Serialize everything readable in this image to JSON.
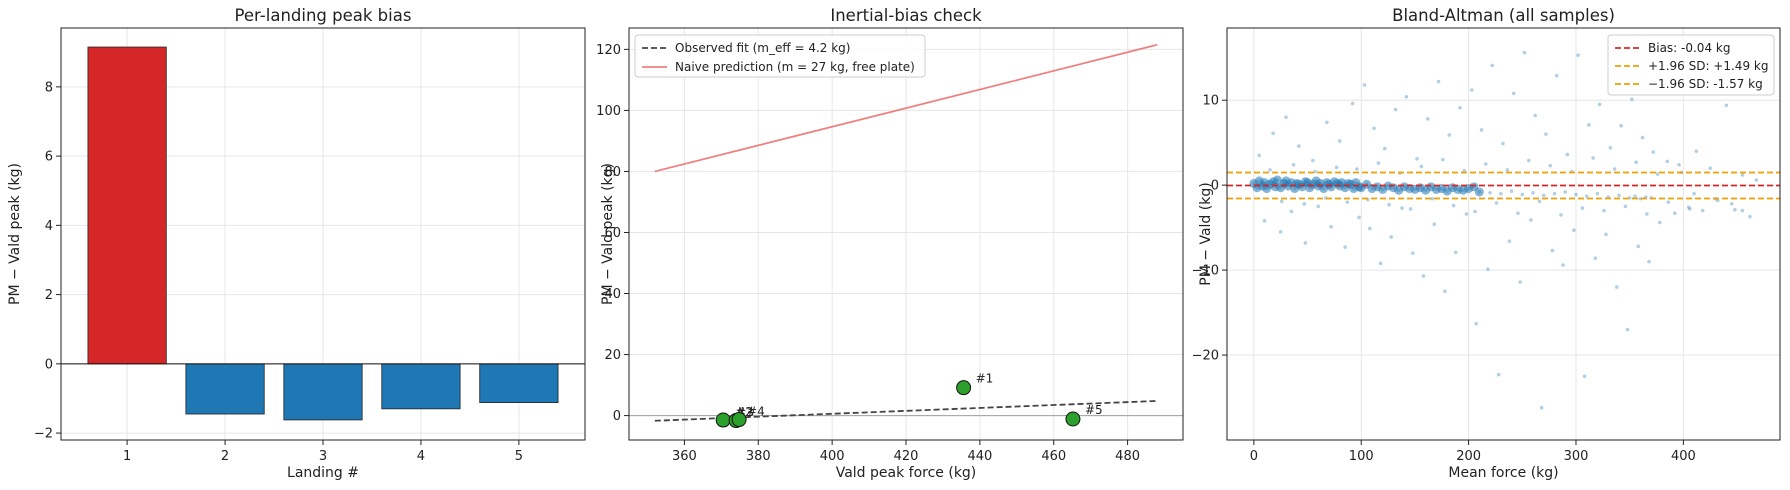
{
  "colors": {
    "positive_bar": "#d62728",
    "negative_bar": "#1f77b4",
    "observed_fit": "#444444",
    "naive_prediction": "#f08080",
    "landing_points": "#2ca02c",
    "bias_line": "#d62728",
    "loa_line": "#f0a000",
    "scatter_points": "#1f77b4"
  },
  "chart_data": [
    {
      "type": "bar",
      "title": "Per-landing peak bias",
      "xlabel": "Landing #",
      "ylabel": "PM − Vald peak (kg)",
      "categories": [
        "1",
        "2",
        "3",
        "4",
        "5"
      ],
      "values": [
        9.15,
        -1.45,
        -1.62,
        -1.3,
        -1.12
      ],
      "ylim": [
        -2.2,
        9.7
      ],
      "yticks": [
        -2,
        0,
        2,
        4,
        6,
        8
      ],
      "grid": true
    },
    {
      "type": "scatter",
      "title": "Inertial-bias check",
      "xlabel": "Vald peak force (kg)",
      "ylabel": "PM − Vald peak (kg)",
      "xlim": [
        345,
        495
      ],
      "ylim": [
        -8,
        127
      ],
      "xticks": [
        360,
        380,
        400,
        420,
        440,
        460,
        480
      ],
      "yticks": [
        0,
        20,
        40,
        60,
        80,
        100,
        120
      ],
      "legend_position": "top-left",
      "series": [
        {
          "name": "Observed fit (m_eff = 4.2 kg)",
          "kind": "line",
          "style": "dashed",
          "x": [
            352,
            488
          ],
          "y": [
            -1.7,
            4.8
          ]
        },
        {
          "name": "Naive prediction (m = 27 kg, free plate)",
          "kind": "line",
          "style": "solid",
          "x": [
            352,
            488
          ],
          "y": [
            80,
            121.5
          ]
        },
        {
          "kind": "points",
          "x": [
            435.6,
            370.5,
            374.0,
            374.8,
            465.2
          ],
          "y": [
            9.15,
            -1.45,
            -1.62,
            -1.3,
            -1.12
          ],
          "labels": [
            "#1",
            "#2",
            "#3",
            "#4",
            "#5"
          ]
        }
      ],
      "reference_line_y": 0,
      "grid": true
    },
    {
      "type": "scatter",
      "title": "Bland-Altman (all samples)",
      "xlabel": "Mean force (kg)",
      "ylabel": "PM − Vald (kg)",
      "xlim": [
        -25,
        490
      ],
      "ylim": [
        -30,
        18.5
      ],
      "xticks": [
        0,
        100,
        200,
        300,
        400
      ],
      "yticks": [
        -20,
        -10,
        0,
        10
      ],
      "legend_position": "top-right",
      "bias": -0.04,
      "upper_loa": 1.49,
      "lower_loa": -1.57,
      "legend": [
        "Bias: -0.04 kg",
        "+1.96 SD: +1.49 kg",
        "−1.96 SD: -1.57 kg"
      ],
      "points": [
        [
          0,
          0.2
        ],
        [
          3,
          -0.3
        ],
        [
          5,
          0.5
        ],
        [
          8,
          -0.1
        ],
        [
          10,
          0.3
        ],
        [
          12,
          -0.4
        ],
        [
          15,
          0.1
        ],
        [
          18,
          0.4
        ],
        [
          20,
          -0.2
        ],
        [
          22,
          0.6
        ],
        [
          25,
          -0.3
        ],
        [
          28,
          0.2
        ],
        [
          30,
          0.5
        ],
        [
          32,
          -0.1
        ],
        [
          35,
          0.3
        ],
        [
          38,
          -0.4
        ],
        [
          40,
          0.2
        ],
        [
          42,
          0.1
        ],
        [
          45,
          -0.2
        ],
        [
          48,
          0.4
        ],
        [
          50,
          0.3
        ],
        [
          52,
          -0.3
        ],
        [
          55,
          0.1
        ],
        [
          58,
          0.5
        ],
        [
          60,
          -0.1
        ],
        [
          62,
          0.2
        ],
        [
          65,
          -0.4
        ],
        [
          68,
          0.3
        ],
        [
          70,
          0.1
        ],
        [
          72,
          -0.2
        ],
        [
          75,
          0.4
        ],
        [
          78,
          0.2
        ],
        [
          80,
          -0.1
        ],
        [
          82,
          0.3
        ],
        [
          85,
          -0.3
        ],
        [
          88,
          0.2
        ],
        [
          90,
          0.1
        ],
        [
          93,
          -0.4
        ],
        [
          95,
          0.3
        ],
        [
          98,
          -0.2
        ],
        [
          100,
          -0.3
        ],
        [
          105,
          0.1
        ],
        [
          110,
          -0.4
        ],
        [
          115,
          -0.2
        ],
        [
          120,
          -0.5
        ],
        [
          125,
          -0.1
        ],
        [
          130,
          -0.3
        ],
        [
          135,
          -0.6
        ],
        [
          140,
          -0.2
        ],
        [
          145,
          -0.4
        ],
        [
          150,
          -0.5
        ],
        [
          155,
          -0.3
        ],
        [
          160,
          -0.6
        ],
        [
          165,
          -0.2
        ],
        [
          170,
          -0.5
        ],
        [
          175,
          -0.4
        ],
        [
          180,
          -0.7
        ],
        [
          185,
          -0.3
        ],
        [
          190,
          -0.5
        ],
        [
          195,
          -0.6
        ],
        [
          200,
          -0.4
        ],
        [
          205,
          -0.2
        ],
        [
          210,
          -0.8
        ],
        [
          220,
          -0.9
        ],
        [
          230,
          -1.0
        ],
        [
          240,
          -0.7
        ],
        [
          250,
          -1.1
        ],
        [
          260,
          -0.9
        ],
        [
          270,
          -1.2
        ],
        [
          280,
          -1.0
        ],
        [
          290,
          -0.8
        ],
        [
          300,
          -1.1
        ],
        [
          310,
          -1.3
        ],
        [
          320,
          -1.0
        ],
        [
          330,
          -1.4
        ],
        [
          340,
          -1.2
        ],
        [
          350,
          -1.5
        ],
        [
          355,
          -1.3
        ],
        [
          360,
          -1.6
        ],
        [
          365,
          -1.4
        ],
        [
          370,
          -1.5
        ],
        [
          410,
          -1.0
        ],
        [
          430,
          -1.6
        ],
        [
          445,
          -2.2
        ],
        [
          455,
          -3.0
        ],
        [
          5,
          3.5
        ],
        [
          10,
          -4.2
        ],
        [
          18,
          6.1
        ],
        [
          25,
          -5.5
        ],
        [
          30,
          8.0
        ],
        [
          35,
          -3.1
        ],
        [
          42,
          4.6
        ],
        [
          48,
          -6.8
        ],
        [
          55,
          2.9
        ],
        [
          60,
          -2.5
        ],
        [
          68,
          7.4
        ],
        [
          72,
          -4.9
        ],
        [
          80,
          5.2
        ],
        [
          85,
          -7.3
        ],
        [
          92,
          9.6
        ],
        [
          98,
          -3.8
        ],
        [
          103,
          11.8
        ],
        [
          108,
          -5.1
        ],
        [
          112,
          6.7
        ],
        [
          118,
          -9.2
        ],
        [
          122,
          4.3
        ],
        [
          128,
          -6.1
        ],
        [
          132,
          8.9
        ],
        [
          138,
          -2.7
        ],
        [
          142,
          10.4
        ],
        [
          148,
          -8.0
        ],
        [
          152,
          3.1
        ],
        [
          158,
          -10.7
        ],
        [
          162,
          7.8
        ],
        [
          168,
          -4.6
        ],
        [
          172,
          12.2
        ],
        [
          178,
          -12.5
        ],
        [
          182,
          5.9
        ],
        [
          188,
          -7.9
        ],
        [
          192,
          9.1
        ],
        [
          198,
          -3.4
        ],
        [
          203,
          11.2
        ],
        [
          207,
          -16.3
        ],
        [
          212,
          6.5
        ],
        [
          218,
          -9.9
        ],
        [
          222,
          14.1
        ],
        [
          228,
          -22.3
        ],
        [
          232,
          4.9
        ],
        [
          238,
          -6.6
        ],
        [
          242,
          10.8
        ],
        [
          248,
          -11.4
        ],
        [
          252,
          15.6
        ],
        [
          258,
          -4.1
        ],
        [
          262,
          8.2
        ],
        [
          268,
          -26.2
        ],
        [
          272,
          6.0
        ],
        [
          278,
          -7.7
        ],
        [
          282,
          12.9
        ],
        [
          288,
          -9.4
        ],
        [
          292,
          3.6
        ],
        [
          298,
          -5.3
        ],
        [
          302,
          15.3
        ],
        [
          308,
          -22.5
        ],
        [
          312,
          7.1
        ],
        [
          318,
          -8.6
        ],
        [
          322,
          9.5
        ],
        [
          328,
          -5.8
        ],
        [
          332,
          4.4
        ],
        [
          338,
          -12.0
        ],
        [
          342,
          7.0
        ],
        [
          348,
          -17.0
        ],
        [
          352,
          10.1
        ],
        [
          358,
          -7.2
        ],
        [
          362,
          5.6
        ],
        [
          368,
          -9.0
        ],
        [
          372,
          3.9
        ],
        [
          378,
          -4.4
        ],
        [
          385,
          2.8
        ],
        [
          392,
          -3.3
        ],
        [
          398,
          1.5
        ],
        [
          405,
          -2.6
        ],
        [
          412,
          4.0
        ],
        [
          418,
          -3.0
        ],
        [
          425,
          2.0
        ],
        [
          432,
          -1.8
        ],
        [
          440,
          9.4
        ],
        [
          448,
          -2.9
        ],
        [
          455,
          1.2
        ],
        [
          462,
          -3.7
        ],
        [
          468,
          0.6
        ],
        [
          15,
          1.8
        ],
        [
          26,
          -1.9
        ],
        [
          37,
          2.4
        ],
        [
          47,
          -2.2
        ],
        [
          57,
          1.6
        ],
        [
          67,
          -1.5
        ],
        [
          77,
          2.1
        ],
        [
          87,
          -2.0
        ],
        [
          96,
          1.9
        ],
        [
          106,
          -1.7
        ],
        [
          116,
          2.6
        ],
        [
          126,
          -2.3
        ],
        [
          136,
          1.4
        ],
        [
          146,
          -2.8
        ],
        [
          156,
          2.2
        ],
        [
          166,
          -1.6
        ],
        [
          176,
          3.0
        ],
        [
          186,
          -2.4
        ],
        [
          196,
          1.7
        ],
        [
          206,
          -3.1
        ],
        [
          216,
          2.5
        ],
        [
          226,
          -2.1
        ],
        [
          236,
          1.8
        ],
        [
          246,
          -3.3
        ],
        [
          256,
          2.9
        ],
        [
          266,
          -1.9
        ],
        [
          276,
          2.3
        ],
        [
          286,
          -3.5
        ],
        [
          296,
          1.6
        ],
        [
          306,
          -2.7
        ],
        [
          316,
          3.2
        ],
        [
          326,
          -3.0
        ],
        [
          336,
          1.9
        ],
        [
          346,
          -2.5
        ],
        [
          356,
          2.7
        ],
        [
          366,
          -3.4
        ],
        [
          376,
          1.3
        ],
        [
          386,
          -2.0
        ],
        [
          396,
          2.4
        ],
        [
          406,
          -2.8
        ]
      ]
    }
  ]
}
